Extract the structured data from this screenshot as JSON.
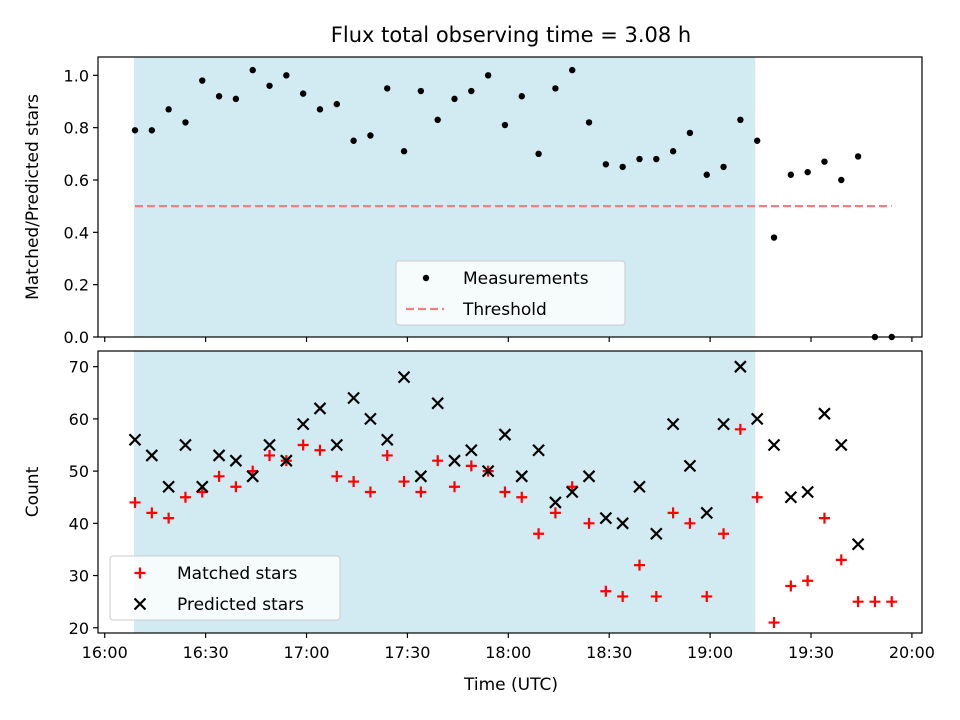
{
  "chart_data": {
    "type": "scatter",
    "title": "Flux total observing time = 3.08 h",
    "x_axis": {
      "label": "Time (UTC)",
      "tick_labels": [
        "16:00",
        "16:30",
        "17:00",
        "17:30",
        "18:00",
        "18:30",
        "19:00",
        "19:30",
        "20:00"
      ],
      "tick_values_min": [
        0,
        30,
        60,
        90,
        120,
        150,
        180,
        210,
        240
      ],
      "range_min": [
        -2,
        243
      ],
      "unit_note": "minutes after 16:00 UTC"
    },
    "shaded_interval_min": [
      8.7,
      193.4
    ],
    "shaded_color": "#add8e6",
    "panels": [
      {
        "id": "ratio",
        "ylabel": "Matched/Predicted stars",
        "ylim": [
          0,
          1.07
        ],
        "yticks": [
          0.0,
          0.2,
          0.4,
          0.6,
          0.8,
          1.0
        ],
        "ytick_labels": [
          "0.0",
          "0.2",
          "0.4",
          "0.6",
          "0.8",
          "1.0"
        ],
        "legend": {
          "placement": "lower center",
          "entries": [
            "Measurements",
            "Threshold"
          ]
        },
        "series": [
          {
            "name": "Measurements",
            "marker": "dot",
            "color": "#000000",
            "x": [
              9,
              14,
              19,
              24,
              29,
              34,
              39,
              44,
              49,
              54,
              59,
              64,
              69,
              74,
              79,
              84,
              89,
              94,
              99,
              104,
              109,
              114,
              119,
              124,
              129,
              134,
              139,
              144,
              149,
              154,
              159,
              164,
              169,
              174,
              179,
              184,
              189,
              194,
              199,
              204,
              209,
              214,
              219,
              224,
              229,
              234
            ],
            "y": [
              0.79,
              0.79,
              0.87,
              0.82,
              0.98,
              0.92,
              0.91,
              1.02,
              0.96,
              1.0,
              0.93,
              0.87,
              0.89,
              0.75,
              0.77,
              0.95,
              0.71,
              0.94,
              0.83,
              0.91,
              0.94,
              1.0,
              0.81,
              0.92,
              0.7,
              0.95,
              1.02,
              0.82,
              0.66,
              0.65,
              0.68,
              0.68,
              0.71,
              0.78,
              0.62,
              0.65,
              0.83,
              0.75,
              0.38,
              0.62,
              0.63,
              0.67,
              0.6,
              0.69,
              0.0,
              0.0
            ]
          },
          {
            "name": "Threshold",
            "style": "dashed",
            "color": "#f08080",
            "x": [
              9,
              234
            ],
            "y": [
              0.5,
              0.5
            ]
          }
        ]
      },
      {
        "id": "counts",
        "ylabel": "Count",
        "ylim": [
          19,
          73
        ],
        "yticks": [
          20,
          30,
          40,
          50,
          60,
          70
        ],
        "ytick_labels": [
          "20",
          "30",
          "40",
          "50",
          "60",
          "70"
        ],
        "legend": {
          "placement": "lower left",
          "entries": [
            "Matched stars",
            "Predicted stars"
          ]
        },
        "series": [
          {
            "name": "Matched stars",
            "marker": "plus",
            "color": "#ff0000",
            "x": [
              9,
              14,
              19,
              24,
              29,
              34,
              39,
              44,
              49,
              54,
              59,
              64,
              69,
              74,
              79,
              84,
              89,
              94,
              99,
              104,
              109,
              114,
              119,
              124,
              129,
              134,
              139,
              144,
              149,
              154,
              159,
              164,
              169,
              174,
              179,
              184,
              189,
              194,
              199,
              204,
              209,
              214,
              219,
              224,
              229,
              234
            ],
            "y": [
              44,
              42,
              41,
              45,
              46,
              49,
              47,
              50,
              53,
              52,
              55,
              54,
              49,
              48,
              46,
              53,
              48,
              46,
              52,
              47,
              51,
              50,
              46,
              45,
              38,
              42,
              47,
              40,
              27,
              26,
              32,
              26,
              42,
              40,
              26,
              38,
              58,
              45,
              21,
              28,
              29,
              41,
              33,
              25,
              25,
              25
            ]
          },
          {
            "name": "Predicted stars",
            "marker": "x",
            "color": "#000000",
            "x": [
              9,
              14,
              19,
              24,
              29,
              34,
              39,
              44,
              49,
              54,
              59,
              64,
              69,
              74,
              79,
              84,
              89,
              94,
              99,
              104,
              109,
              114,
              119,
              124,
              129,
              134,
              139,
              144,
              149,
              154,
              159,
              164,
              169,
              174,
              179,
              184,
              189,
              194,
              199,
              204,
              209,
              214,
              219,
              224
            ],
            "y": [
              56,
              53,
              47,
              55,
              47,
              53,
              52,
              49,
              55,
              52,
              59,
              62,
              55,
              64,
              60,
              56,
              68,
              49,
              63,
              52,
              54,
              50,
              57,
              49,
              54,
              44,
              46,
              49,
              41,
              40,
              47,
              38,
              59,
              51,
              42,
              59,
              70,
              60,
              55,
              45,
              46,
              61,
              55,
              36
            ]
          }
        ]
      }
    ]
  }
}
